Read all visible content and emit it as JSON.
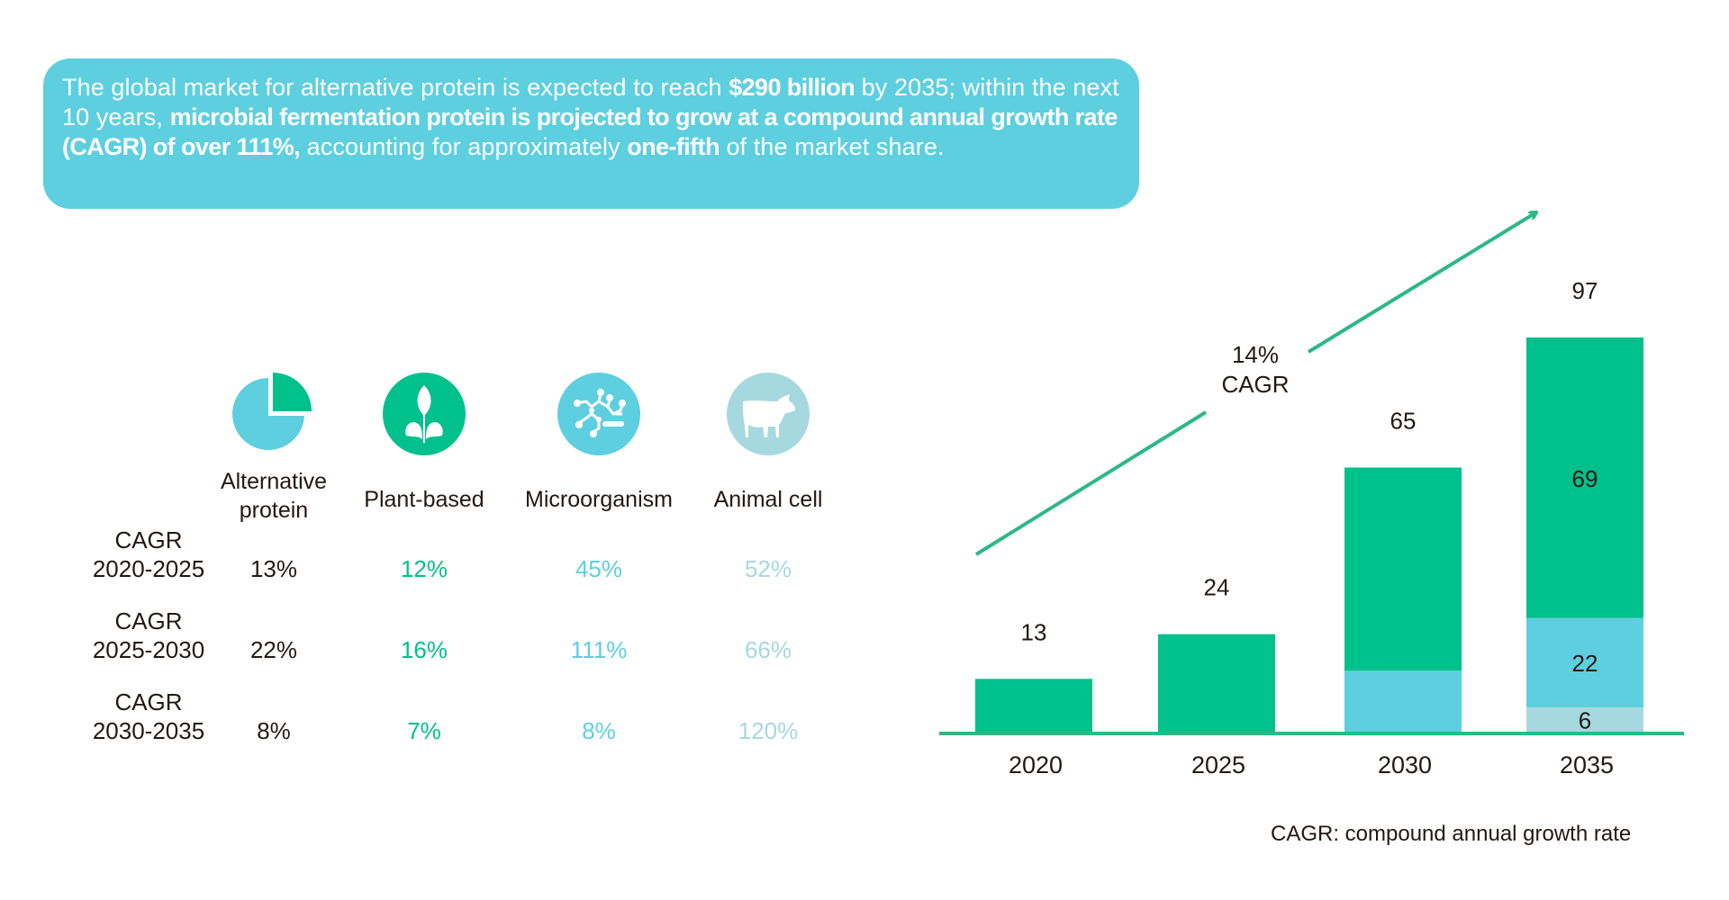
{
  "summary": {
    "parts": [
      {
        "text": "The global market for alternative protein is expected to reach ",
        "bold": false
      },
      {
        "text": "$290 billion",
        "bold": true
      },
      {
        "text": " by 2035; within the next 10 years, ",
        "bold": false
      },
      {
        "text": "microbial fermentation protein is projected to grow at a compound annual growth rate (CAGR) of over 111%,",
        "bold": true
      },
      {
        "text": " accounting for approximately ",
        "bold": false
      },
      {
        "text": "one-fifth",
        "bold": true
      },
      {
        "text": " of the market share.",
        "bold": false
      }
    ]
  },
  "colors": {
    "bubble": "#5dcfdf",
    "plant": "#00c08b",
    "micro": "#5dcfdf",
    "animal": "#a6d9df",
    "arrow": "#2db886",
    "axis": "#2db886",
    "text": "#231815"
  },
  "cagr_table": {
    "columns": [
      {
        "label": "Alternative protein",
        "label_lines": [
          "Alternative",
          "protein"
        ],
        "icon": "pie-chart-icon",
        "value_color": "#231815"
      },
      {
        "label": "Plant-based",
        "label_lines": [
          "Plant-based"
        ],
        "icon": "plant-leaf-icon",
        "value_color": "#00c08b"
      },
      {
        "label": "Microorganism",
        "label_lines": [
          "Microorganism"
        ],
        "icon": "molecule-icon",
        "value_color": "#5dcfdf"
      },
      {
        "label": "Animal cell",
        "label_lines": [
          "Animal cell"
        ],
        "icon": "cow-icon",
        "value_color": "#a6d9df"
      }
    ],
    "rows": [
      {
        "label_lines": [
          "CAGR",
          "2020-2025"
        ],
        "values": [
          "13%",
          "12%",
          "45%",
          "52%"
        ]
      },
      {
        "label_lines": [
          "CAGR",
          "2025-2030"
        ],
        "values": [
          "22%",
          "16%",
          "111%",
          "66%"
        ]
      },
      {
        "label_lines": [
          "CAGR",
          "2030-2035"
        ],
        "values": [
          "8%",
          "7%",
          "8%",
          "120%"
        ]
      }
    ]
  },
  "chart_data": {
    "type": "bar",
    "stacked": true,
    "title": "",
    "xlabel": "",
    "ylabel": "",
    "categories": [
      "2020",
      "2025",
      "2030",
      "2035"
    ],
    "series": [
      {
        "name": "Animal cell",
        "color": "#a6d9df",
        "values": [
          0,
          0,
          0,
          6
        ],
        "labels": [
          null,
          null,
          null,
          "6"
        ]
      },
      {
        "name": "Microorganism",
        "color": "#5dcfdf",
        "values": [
          0,
          0,
          15,
          22
        ],
        "labels": [
          null,
          null,
          null,
          "22"
        ]
      },
      {
        "name": "Plant-based",
        "color": "#00c08b",
        "values": [
          13,
          24,
          50,
          69
        ],
        "labels": [
          null,
          null,
          null,
          "69"
        ]
      }
    ],
    "totals": [
      13,
      24,
      65,
      97
    ],
    "total_labels": [
      "13",
      "24",
      "65",
      "97"
    ],
    "ylim": [
      0,
      97
    ],
    "grid": false,
    "legend": "none",
    "annotation": {
      "lines": [
        "14%",
        "CAGR"
      ],
      "type": "trend-arrow"
    }
  },
  "footnote": "CAGR: compound annual growth rate"
}
